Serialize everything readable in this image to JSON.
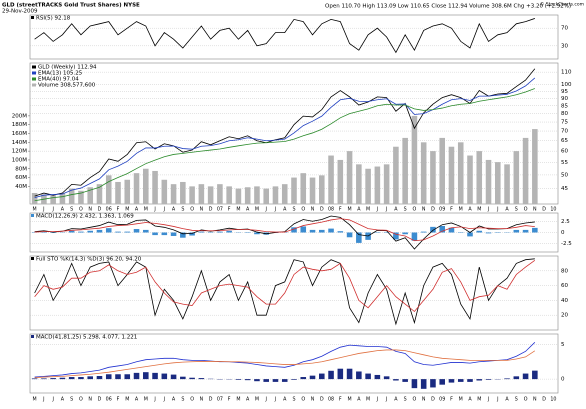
{
  "header": {
    "symbol": "GLD (streetTRACKS Gold Trust Shares) NYSE",
    "date": "29-Nov-2009",
    "quote": "Open 110.70  High 113.09  Low 110.65  Close 112.94  Volume 308.6M  Chg +3.20 (+2.92%)",
    "source": "© StockCharts.com"
  },
  "chart_data": [
    {
      "type": "line",
      "label": "RSI(5) 92.18",
      "ylim": [
        0,
        100
      ],
      "yticks": [
        30,
        70
      ],
      "grid": true,
      "series": [
        {
          "color": "#000000",
          "kind": "line",
          "values": [
            45,
            60,
            40,
            55,
            80,
            55,
            75,
            80,
            85,
            55,
            70,
            85,
            75,
            30,
            60,
            45,
            25,
            50,
            75,
            45,
            65,
            70,
            45,
            65,
            30,
            35,
            60,
            60,
            90,
            85,
            55,
            80,
            90,
            85,
            35,
            20,
            55,
            70,
            50,
            15,
            55,
            20,
            65,
            75,
            80,
            70,
            40,
            25,
            80,
            40,
            55,
            60,
            80,
            85,
            92.18,
            null,
            null
          ]
        }
      ]
    },
    {
      "type": "line",
      "log_scale": true,
      "ylim": [
        40,
        118
      ],
      "yticks": [
        45,
        50,
        55,
        60,
        65,
        70,
        75,
        80,
        85,
        90,
        95,
        100,
        110
      ],
      "grid": true,
      "y2lim": [
        0,
        320
      ],
      "y2ticks": [
        {
          "value": 40,
          "label": "40M"
        },
        {
          "value": 60,
          "label": "60M"
        },
        {
          "value": 80,
          "label": "80M"
        },
        {
          "value": 100,
          "label": "100M"
        },
        {
          "value": 120,
          "label": "120M"
        },
        {
          "value": 140,
          "label": "140M"
        },
        {
          "value": 160,
          "label": "160M"
        },
        {
          "value": 180,
          "label": "180M"
        },
        {
          "value": 200,
          "label": "200M"
        }
      ],
      "categories": [
        "M",
        "J",
        "J",
        "A",
        "S",
        "O",
        "N",
        "D",
        "06",
        "F",
        "M",
        "A",
        "M",
        "J",
        "J",
        "A",
        "S",
        "O",
        "N",
        "D",
        "07",
        "F",
        "M",
        "A",
        "M",
        "J",
        "J",
        "A",
        "S",
        "O",
        "N",
        "D",
        "08",
        "F",
        "M",
        "A",
        "M",
        "J",
        "J",
        "A",
        "S",
        "O",
        "N",
        "D",
        "09",
        "F",
        "M",
        "A",
        "M",
        "J",
        "J",
        "A",
        "S",
        "O",
        "N",
        "D",
        "10"
      ],
      "series": [
        {
          "name": "GLD (Weekly) 112.94",
          "color": "#000000",
          "kind": "line",
          "values": [
            42.5,
            43.5,
            42.8,
            43.5,
            46.5,
            46.2,
            49.0,
            51.3,
            56.5,
            55.5,
            58.5,
            64.0,
            64.5,
            61.0,
            63.5,
            62.5,
            59.5,
            60.5,
            64.5,
            63.0,
            65.0,
            67.0,
            66.0,
            67.5,
            65.0,
            64.0,
            65.5,
            66.5,
            73.5,
            78.5,
            78.0,
            82.5,
            91.0,
            95.5,
            91.0,
            85.5,
            87.5,
            91.0,
            90.5,
            81.5,
            86.5,
            71.5,
            80.5,
            86.0,
            90.5,
            92.5,
            90.5,
            86.5,
            95.5,
            91.5,
            93.0,
            93.5,
            98.5,
            103.5,
            112.94,
            null,
            null
          ]
        },
        {
          "name": "EMA(13) 105.25",
          "color": "#2040c0",
          "kind": "line",
          "values": [
            42,
            42.8,
            43,
            43.2,
            44.5,
            45.2,
            46.8,
            48.5,
            52,
            53.5,
            55.5,
            59,
            61.5,
            61.5,
            62.3,
            62.4,
            61.2,
            60.9,
            62.3,
            62.6,
            63.5,
            65,
            65.5,
            66.5,
            65.8,
            65,
            65.3,
            65.8,
            69,
            73,
            75.5,
            78.5,
            84,
            89,
            90,
            88,
            87.8,
            89,
            89.7,
            86,
            86.2,
            79.5,
            80,
            82.5,
            86,
            89,
            89.8,
            88.5,
            91.5,
            91.5,
            92.2,
            92.8,
            95.2,
            99,
            105.25,
            null,
            null
          ]
        },
        {
          "name": "EMA(40) 97.04",
          "color": "#2a8a2a",
          "kind": "line",
          "values": [
            41,
            41.5,
            42,
            42.3,
            43,
            43.5,
            44.5,
            45.5,
            47.5,
            49,
            50.5,
            52.5,
            54.5,
            56,
            57.5,
            58.5,
            59,
            59.5,
            60,
            60.5,
            61,
            61.8,
            62.5,
            63.2,
            63.8,
            64,
            64.3,
            64.6,
            65.8,
            67.5,
            69,
            71,
            74,
            77.5,
            80,
            81.5,
            83,
            85,
            86,
            85.5,
            85.5,
            83,
            82,
            82.5,
            83.5,
            85,
            86,
            86.5,
            88,
            89,
            90,
            91,
            92.5,
            94.5,
            97.04,
            null,
            null
          ]
        },
        {
          "name": "Volume 308,577,600",
          "color": "#b4b4b4",
          "kind": "bar",
          "axis": "y2",
          "values": [
            25,
            22,
            20,
            24,
            35,
            30,
            38,
            45,
            65,
            50,
            55,
            70,
            80,
            75,
            55,
            45,
            50,
            40,
            45,
            40,
            45,
            40,
            35,
            38,
            40,
            35,
            40,
            45,
            60,
            70,
            60,
            65,
            110,
            100,
            120,
            90,
            80,
            85,
            90,
            130,
            150,
            200,
            140,
            120,
            150,
            130,
            140,
            110,
            120,
            100,
            95,
            90,
            120,
            150,
            170,
            null,
            null
          ]
        }
      ]
    },
    {
      "type": "line",
      "label": "MACD(12,26,9) 2.432, 1.363, 1.069",
      "ylim": [
        -4.5,
        4.5
      ],
      "yticks": [
        -2.5,
        0.0,
        2.5
      ],
      "grid": true,
      "series": [
        {
          "color": "#3c8cd0",
          "kind": "bar",
          "values": [
            0.1,
            0.2,
            -0.1,
            0,
            0.4,
            0.2,
            0.4,
            0.6,
            1.0,
            0.2,
            0.2,
            0.8,
            0.6,
            -0.6,
            -0.6,
            -0.8,
            -1.2,
            -0.7,
            0.2,
            -0.1,
            0.2,
            0.4,
            0,
            0.1,
            -0.4,
            -0.5,
            -0.1,
            0.1,
            1.2,
            1.4,
            0.6,
            0.6,
            0.9,
            0.3,
            -1.1,
            -2.4,
            -1.7,
            -0.1,
            -0.1,
            -1.6,
            -0.4,
            -1.9,
            0.2,
            1.3,
            1.5,
            1.1,
            0.1,
            -0.9,
            0.4,
            -0.2,
            -0.1,
            0,
            0.6,
            0.6,
            1.069,
            null,
            null
          ]
        },
        {
          "color": "#000000",
          "kind": "line",
          "values": [
            0.2,
            0.4,
            0.1,
            0.3,
            0.9,
            0.8,
            1.2,
            1.6,
            2.4,
            1.8,
            1.9,
            2.8,
            2.9,
            1.5,
            1.2,
            0.6,
            -0.3,
            -0.2,
            0.6,
            0.3,
            0.6,
            1.0,
            0.7,
            0.8,
            0.1,
            -0.3,
            0,
            0.2,
            2.0,
            3.0,
            2.6,
            3.0,
            3.8,
            3.5,
            1.8,
            -0.5,
            -0.8,
            0.5,
            0.4,
            -2.0,
            -1.2,
            -3.8,
            -1.5,
            0.5,
            1.8,
            2.2,
            1.4,
            0,
            1.5,
            0.8,
            0.8,
            0.9,
            1.8,
            2.2,
            2.432,
            null,
            null
          ]
        },
        {
          "color": "#d03030",
          "kind": "line",
          "values": [
            0.1,
            0.2,
            0.2,
            0.3,
            0.5,
            0.6,
            0.8,
            1.0,
            1.4,
            1.6,
            1.7,
            2.0,
            2.3,
            2.1,
            1.8,
            1.4,
            0.9,
            0.5,
            0.4,
            0.4,
            0.4,
            0.6,
            0.7,
            0.7,
            0.5,
            0.2,
            0.1,
            0.1,
            0.8,
            1.6,
            2.0,
            2.4,
            2.9,
            3.2,
            2.9,
            1.9,
            0.9,
            0.6,
            0.5,
            -0.4,
            -0.8,
            -1.9,
            -1.7,
            -0.8,
            0.3,
            1.1,
            1.3,
            0.9,
            1.1,
            1.0,
            0.9,
            0.9,
            1.2,
            1.6,
            1.363,
            null,
            null
          ]
        }
      ]
    },
    {
      "type": "line",
      "label": "Full STO %K(14,3) %D(3) 96.20, 94.20",
      "ylim": [
        0,
        100
      ],
      "yticks": [
        20,
        40,
        60,
        80
      ],
      "grid": true,
      "series": [
        {
          "color": "#000000",
          "kind": "line",
          "values": [
            50,
            75,
            40,
            60,
            90,
            60,
            85,
            90,
            92,
            60,
            75,
            92,
            85,
            20,
            55,
            40,
            15,
            45,
            80,
            40,
            65,
            75,
            40,
            65,
            20,
            20,
            60,
            65,
            95,
            92,
            60,
            85,
            95,
            90,
            30,
            10,
            50,
            75,
            55,
            8,
            50,
            10,
            60,
            85,
            90,
            75,
            35,
            15,
            85,
            40,
            60,
            70,
            90,
            95,
            96.2,
            null,
            null
          ]
        },
        {
          "color": "#d03030",
          "kind": "line",
          "values": [
            45,
            60,
            55,
            58,
            70,
            70,
            78,
            80,
            88,
            80,
            75,
            78,
            85,
            65,
            50,
            38,
            35,
            33,
            50,
            55,
            60,
            62,
            60,
            58,
            45,
            35,
            35,
            50,
            75,
            85,
            82,
            80,
            82,
            90,
            70,
            40,
            30,
            45,
            60,
            45,
            35,
            25,
            40,
            55,
            78,
            83,
            65,
            40,
            45,
            47,
            60,
            55,
            75,
            85,
            94.2,
            null,
            null
          ]
        }
      ]
    },
    {
      "type": "line",
      "label": "MACD(41,81,25) 5.298, 4.077, 1.221",
      "ylim": [
        -2,
        6.5
      ],
      "yticks": [
        0,
        5
      ],
      "grid": true,
      "series": [
        {
          "color": "#1a2a80",
          "kind": "bar",
          "values": [
            0.1,
            0.1,
            0.15,
            0.2,
            0.3,
            0.3,
            0.4,
            0.45,
            0.7,
            0.7,
            0.7,
            0.9,
            1.0,
            0.9,
            0.8,
            0.65,
            0.35,
            0.2,
            0.15,
            0.05,
            -0.05,
            0,
            -0.1,
            -0.15,
            -0.3,
            -0.4,
            -0.4,
            -0.4,
            -0.1,
            0.3,
            0.5,
            0.8,
            1.2,
            1.5,
            1.5,
            1.1,
            0.8,
            0.6,
            0.4,
            -0.2,
            -0.4,
            -1.3,
            -1.4,
            -1.2,
            -0.8,
            -0.5,
            -0.4,
            -0.4,
            -0.2,
            -0.1,
            0,
            0.1,
            0.4,
            0.8,
            1.221,
            null,
            null
          ]
        },
        {
          "color": "#2030d0",
          "kind": "line",
          "values": [
            0.3,
            0.4,
            0.5,
            0.6,
            0.8,
            0.9,
            1.1,
            1.3,
            1.7,
            1.9,
            2.1,
            2.5,
            2.8,
            2.9,
            3.0,
            3.0,
            2.8,
            2.7,
            2.7,
            2.6,
            2.5,
            2.5,
            2.4,
            2.3,
            2.1,
            1.9,
            1.8,
            1.7,
            2.0,
            2.5,
            2.8,
            3.3,
            4.0,
            4.6,
            4.9,
            4.8,
            4.7,
            4.7,
            4.6,
            4.0,
            3.7,
            2.5,
            2.1,
            2.0,
            2.2,
            2.4,
            2.4,
            2.3,
            2.5,
            2.6,
            2.7,
            2.8,
            3.3,
            4.0,
            5.298,
            null,
            null
          ]
        },
        {
          "color": "#e07040",
          "kind": "line",
          "values": [
            0.2,
            0.3,
            0.35,
            0.4,
            0.5,
            0.6,
            0.7,
            0.85,
            1.0,
            1.2,
            1.4,
            1.6,
            1.8,
            2.0,
            2.2,
            2.35,
            2.45,
            2.5,
            2.55,
            2.55,
            2.55,
            2.5,
            2.5,
            2.45,
            2.4,
            2.3,
            2.2,
            2.1,
            2.1,
            2.2,
            2.3,
            2.5,
            2.8,
            3.1,
            3.4,
            3.7,
            3.9,
            4.1,
            4.2,
            4.2,
            4.1,
            3.8,
            3.5,
            3.2,
            3.0,
            2.9,
            2.8,
            2.7,
            2.7,
            2.7,
            2.7,
            2.7,
            2.9,
            3.2,
            4.077,
            null,
            null
          ]
        }
      ]
    }
  ]
}
